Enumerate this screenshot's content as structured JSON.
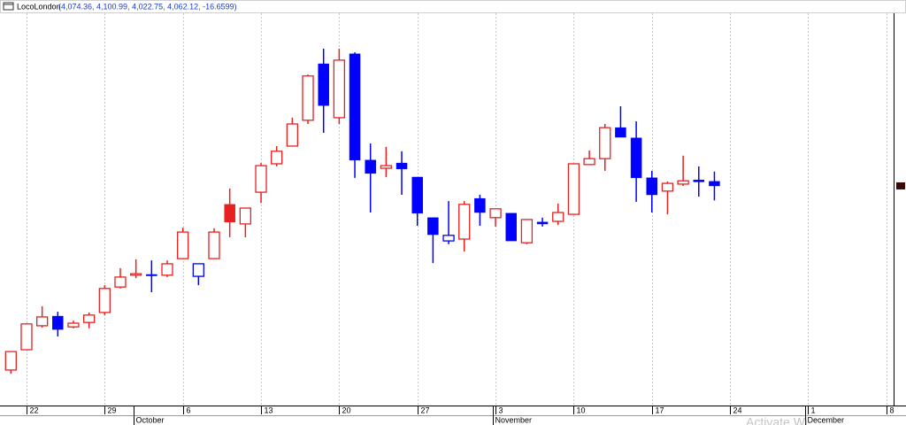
{
  "chart_data": {
    "type": "candlestick",
    "title": "LocoLondon",
    "ohlc_label": "(4,074.36, 4,100.99, 4,022.75, 4,062.12, -16.6599)",
    "watermark": "Activate Wi",
    "categories": [
      null,
      "22",
      null,
      null,
      null,
      null,
      "29",
      null,
      null,
      null,
      null,
      "6",
      null,
      null,
      null,
      null,
      "13",
      null,
      null,
      null,
      null,
      "20",
      null,
      null,
      null,
      null,
      "27",
      null,
      null,
      null,
      null,
      "3",
      null,
      null,
      null,
      null,
      "10",
      null,
      null,
      null,
      null,
      "17",
      null,
      null,
      null,
      null,
      "24",
      null,
      null,
      null,
      null,
      "1",
      null,
      null,
      null,
      null,
      "8"
    ],
    "months": [
      null,
      null,
      null,
      null,
      null,
      null,
      null,
      null,
      "October",
      null,
      null,
      null,
      null,
      null,
      null,
      null,
      null,
      null,
      null,
      null,
      null,
      null,
      null,
      null,
      null,
      null,
      null,
      null,
      null,
      null,
      null,
      "November",
      null,
      null,
      null,
      null,
      null,
      null,
      null,
      null,
      null,
      null,
      null,
      null,
      null,
      null,
      null,
      null,
      null,
      null,
      null,
      "December",
      null,
      null,
      null,
      null,
      null
    ],
    "open": [
      3563,
      3618,
      3683,
      3709,
      3680,
      3692,
      3719,
      3788,
      3820,
      3822,
      3820,
      3865,
      3817,
      3865,
      4012,
      3959,
      4045,
      4122,
      4170,
      4240,
      4393,
      4247,
      4420,
      4132,
      4110,
      4124,
      4086,
      3976,
      3913,
      3918,
      4028,
      3976,
      3988,
      3908,
      3964,
      3966,
      3985,
      4120,
      4136,
      4220,
      4192,
      4084,
      4048,
      4067,
      4078,
      4074.36,
      null,
      null,
      null,
      null,
      null,
      null,
      null,
      null,
      null,
      null,
      null
    ],
    "high": [
      3613,
      3688,
      3736,
      3721,
      3697,
      3719,
      3793,
      3839,
      3863,
      3860,
      3860,
      3949,
      3851,
      3947,
      4055,
      4002,
      4124,
      4170,
      4247,
      4364,
      4434,
      4434,
      4424,
      4177,
      4168,
      4156,
      4086,
      3976,
      4021,
      4021,
      4038,
      4000,
      3988,
      3971,
      3976,
      4014,
      4122,
      4158,
      4230,
      4278,
      4237,
      4103,
      4074,
      4144,
      4115,
      4100.99,
      null,
      null,
      null,
      null,
      null,
      null,
      null,
      null,
      null,
      null,
      null
    ],
    "low": [
      3553,
      3618,
      3678,
      3654,
      3676,
      3676,
      3712,
      3784,
      3812,
      3774,
      3815,
      3865,
      3793,
      3865,
      3923,
      3923,
      4016,
      4115,
      4170,
      4230,
      4206,
      4230,
      4084,
      3990,
      4086,
      4038,
      3954,
      3853,
      3904,
      3884,
      3954,
      3952,
      3913,
      3904,
      3952,
      3956,
      3985,
      4120,
      4103,
      4194,
      4019,
      3990,
      3985,
      4062,
      4033,
      4022.75,
      null,
      null,
      null,
      null,
      null,
      null,
      null,
      null,
      null,
      null,
      null
    ],
    "close": [
      3613,
      3688,
      3707,
      3673,
      3690,
      3712,
      3784,
      3815,
      3824,
      3820,
      3851,
      3937,
      3851,
      3937,
      3964,
      4002,
      4117,
      4156,
      4230,
      4360,
      4280,
      4403,
      4132,
      4096,
      4117,
      4108,
      3988,
      3930,
      3928,
      4012,
      3990,
      4000,
      3913,
      3971,
      3959,
      3990,
      4122,
      4136,
      4220,
      4194,
      4084,
      4038,
      4069,
      4076,
      4073,
      4062.12,
      null,
      null,
      null,
      null,
      null,
      null,
      null,
      null,
      null,
      null,
      null
    ],
    "rise_color": "#e82020",
    "fall_color": "#0000ff",
    "ylim": [
      3474,
      4530
    ],
    "grid": true
  }
}
